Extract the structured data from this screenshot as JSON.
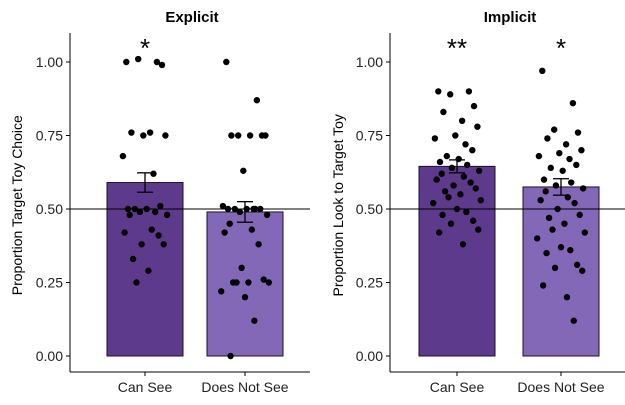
{
  "chart_data": [
    {
      "type": "bar",
      "title": "Explicit",
      "ylabel": "Proportion Target Toy Choice",
      "xlabel": "",
      "categories": [
        "Can See",
        "Does Not See"
      ],
      "values": [
        0.59,
        0.49
      ],
      "error": [
        0.033,
        0.035
      ],
      "reference_line": 0.5,
      "ylim": [
        0,
        1.08
      ],
      "yticks": [
        "0.00",
        "0.25",
        "0.50",
        "0.75",
        "1.00"
      ],
      "significance": [
        "*",
        ""
      ],
      "bar_colors": [
        "#5e3a8c",
        "#8468b8"
      ],
      "points": [
        [
          1.0,
          1.0,
          1.01,
          0.99,
          0.76,
          0.76,
          0.75,
          0.75,
          0.68,
          0.62,
          0.51,
          0.5,
          0.5,
          0.5,
          0.49,
          0.49,
          0.48,
          0.48,
          0.43,
          0.42,
          0.41,
          0.38,
          0.38,
          0.33,
          0.29,
          0.25
        ],
        [
          1.0,
          0.87,
          0.75,
          0.75,
          0.75,
          0.75,
          0.75,
          0.63,
          0.51,
          0.5,
          0.5,
          0.5,
          0.5,
          0.5,
          0.5,
          0.49,
          0.48,
          0.45,
          0.43,
          0.42,
          0.38,
          0.3,
          0.26,
          0.25,
          0.25,
          0.25,
          0.25,
          0.22,
          0.2,
          0.12,
          0.0
        ]
      ]
    },
    {
      "type": "bar",
      "title": "Implicit",
      "ylabel": "Proportion Look to Target Toy",
      "xlabel": "",
      "categories": [
        "Can See",
        "Does Not See"
      ],
      "values": [
        0.645,
        0.575
      ],
      "error": [
        0.022,
        0.028
      ],
      "reference_line": 0.5,
      "ylim": [
        0,
        1.08
      ],
      "yticks": [
        "0.00",
        "0.25",
        "0.50",
        "0.75",
        "1.00"
      ],
      "significance": [
        "**",
        "*"
      ],
      "bar_colors": [
        "#5e3a8c",
        "#8468b8"
      ],
      "points": [
        [
          0.9,
          0.9,
          0.89,
          0.85,
          0.83,
          0.8,
          0.78,
          0.75,
          0.74,
          0.72,
          0.7,
          0.68,
          0.67,
          0.66,
          0.65,
          0.64,
          0.63,
          0.62,
          0.61,
          0.6,
          0.59,
          0.58,
          0.57,
          0.56,
          0.55,
          0.54,
          0.53,
          0.52,
          0.5,
          0.49,
          0.48,
          0.46,
          0.45,
          0.43,
          0.42,
          0.38
        ],
        [
          0.97,
          0.86,
          0.77,
          0.76,
          0.74,
          0.72,
          0.7,
          0.69,
          0.68,
          0.67,
          0.65,
          0.64,
          0.63,
          0.6,
          0.59,
          0.58,
          0.57,
          0.56,
          0.54,
          0.53,
          0.52,
          0.5,
          0.48,
          0.47,
          0.45,
          0.43,
          0.42,
          0.4,
          0.37,
          0.36,
          0.35,
          0.31,
          0.3,
          0.29,
          0.24,
          0.2,
          0.12
        ]
      ]
    }
  ]
}
